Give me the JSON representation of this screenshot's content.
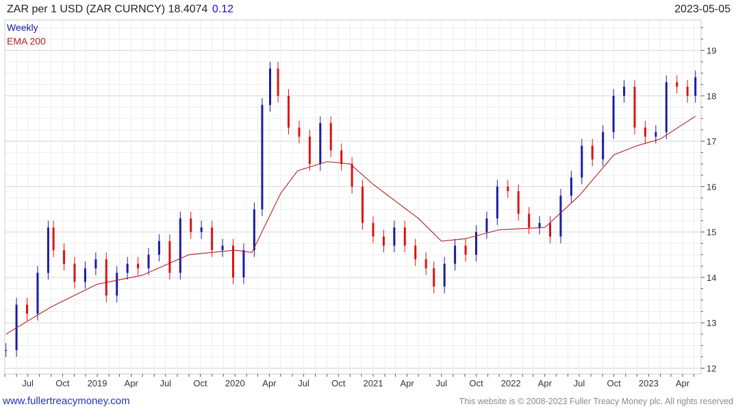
{
  "header": {
    "title": "ZAR per 1 USD (ZAR CURNCY) 18.4074",
    "change": "0.12",
    "date": "2023-05-05"
  },
  "footer": {
    "website": "www.fullertreacymoney.com",
    "copyright": "This website is © 2008-2023 Fuller Treacy Money plc. All rights reserved"
  },
  "colors": {
    "up": "#1a1aa8",
    "down": "#dd1111",
    "ema": "#b02020",
    "grid": "#e4e4e4",
    "frame": "#c8c8c8"
  },
  "chart_data": {
    "type": "line",
    "series_display": "candlestick",
    "legend": [
      "Weekly",
      "EMA 200"
    ],
    "legend_colors": [
      "#1a1aa8",
      "#b02020"
    ],
    "legend_position": "top-left",
    "y_axis_side": "right",
    "ylim": [
      12,
      19.5
    ],
    "y_ticks": [
      12,
      13,
      14,
      15,
      16,
      17,
      18,
      19
    ],
    "x_ticks": [
      "Jul",
      "Oct",
      "2019",
      "Apr",
      "Jul",
      "Oct",
      "2020",
      "Apr",
      "Jul",
      "Oct",
      "2021",
      "Apr",
      "Jul",
      "Oct",
      "2022",
      "Apr",
      "Jul",
      "Oct",
      "2023",
      "Apr"
    ],
    "x_tick_dates": [
      "2018-07-01",
      "2018-10-01",
      "2019-01-01",
      "2019-04-01",
      "2019-07-01",
      "2019-10-01",
      "2020-01-01",
      "2020-04-01",
      "2020-07-01",
      "2020-10-01",
      "2021-01-01",
      "2021-04-01",
      "2021-07-01",
      "2021-10-01",
      "2022-01-01",
      "2022-04-01",
      "2022-07-01",
      "2022-10-01",
      "2023-01-01",
      "2023-04-01"
    ],
    "xlim": [
      "2018-05-01",
      "2023-05-20"
    ],
    "grid": true,
    "series": [
      {
        "name": "Weekly",
        "style": "candles",
        "x": [
          "2018-05-04",
          "2018-06-01",
          "2018-06-29",
          "2018-07-27",
          "2018-08-24",
          "2018-09-07",
          "2018-10-05",
          "2018-11-02",
          "2018-11-30",
          "2018-12-28",
          "2019-01-25",
          "2019-02-22",
          "2019-03-22",
          "2019-04-19",
          "2019-05-17",
          "2019-06-14",
          "2019-07-12",
          "2019-08-09",
          "2019-09-06",
          "2019-10-04",
          "2019-11-01",
          "2019-11-29",
          "2019-12-27",
          "2020-01-24",
          "2020-02-21",
          "2020-03-13",
          "2020-04-03",
          "2020-04-24",
          "2020-05-22",
          "2020-06-19",
          "2020-07-17",
          "2020-08-14",
          "2020-09-11",
          "2020-10-09",
          "2020-11-06",
          "2020-12-04",
          "2021-01-01",
          "2021-01-29",
          "2021-02-26",
          "2021-03-26",
          "2021-04-23",
          "2021-05-21",
          "2021-06-11",
          "2021-07-09",
          "2021-08-06",
          "2021-09-03",
          "2021-10-01",
          "2021-10-29",
          "2021-11-26",
          "2021-12-24",
          "2022-01-21",
          "2022-02-18",
          "2022-03-18",
          "2022-04-15",
          "2022-05-13",
          "2022-06-10",
          "2022-07-08",
          "2022-08-05",
          "2022-09-02",
          "2022-09-30",
          "2022-10-28",
          "2022-11-25",
          "2022-12-23",
          "2023-01-20",
          "2023-02-17",
          "2023-03-17",
          "2023-04-14",
          "2023-05-05"
        ],
        "close": [
          12.4,
          13.4,
          13.2,
          14.1,
          15.1,
          14.6,
          14.3,
          13.9,
          14.2,
          14.4,
          13.6,
          14.1,
          14.3,
          14.2,
          14.5,
          14.8,
          14.1,
          15.3,
          15.0,
          15.1,
          14.6,
          14.7,
          14.0,
          14.6,
          15.5,
          17.8,
          18.6,
          18.0,
          17.3,
          17.1,
          16.5,
          17.4,
          16.8,
          16.5,
          16.0,
          15.2,
          14.9,
          14.7,
          15.1,
          14.7,
          14.4,
          14.2,
          13.8,
          14.3,
          14.7,
          14.5,
          15.0,
          15.3,
          16.0,
          15.9,
          15.4,
          15.1,
          15.2,
          14.9,
          15.8,
          16.2,
          16.9,
          16.6,
          17.2,
          18.0,
          18.2,
          17.3,
          17.1,
          17.2,
          18.3,
          18.2,
          18.0,
          18.41
        ]
      },
      {
        "name": "EMA 200",
        "style": "line",
        "x": [
          "2018-05-04",
          "2018-09-01",
          "2019-01-01",
          "2019-05-01",
          "2019-09-01",
          "2020-01-01",
          "2020-02-15",
          "2020-05-01",
          "2020-06-15",
          "2020-09-01",
          "2020-11-01",
          "2021-01-01",
          "2021-05-01",
          "2021-07-01",
          "2021-09-01",
          "2021-12-01",
          "2022-04-01",
          "2022-07-01",
          "2022-10-01",
          "2022-12-01",
          "2023-02-01",
          "2023-05-05"
        ],
        "values": [
          12.75,
          13.35,
          13.85,
          14.05,
          14.5,
          14.6,
          14.55,
          15.85,
          16.35,
          16.55,
          16.5,
          16.05,
          15.3,
          14.8,
          14.85,
          15.05,
          15.1,
          15.8,
          16.7,
          16.9,
          17.05,
          17.55
        ]
      }
    ]
  }
}
